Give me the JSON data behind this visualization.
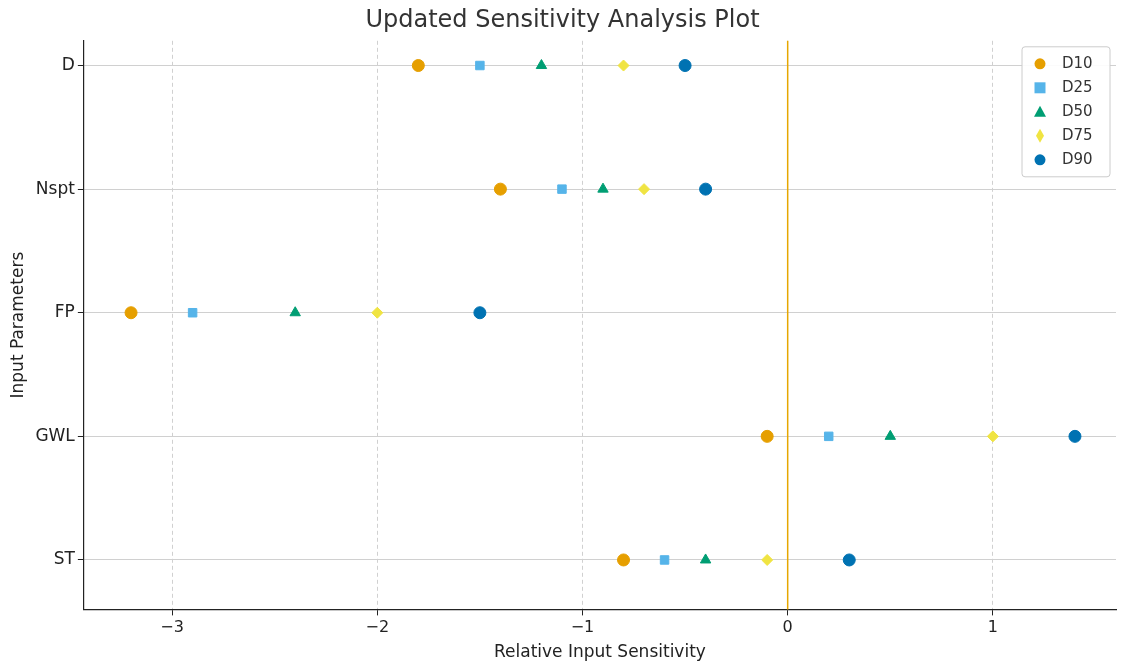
{
  "chart_data": {
    "type": "scatter",
    "orientation": "horizontal",
    "title": "Updated Sensitivity Analysis Plot",
    "xlabel": "Relative Input Sensitivity",
    "ylabel": "Input Parameters",
    "categories": [
      "D",
      "Nspt",
      "FP",
      "GWL",
      "ST"
    ],
    "series": [
      {
        "name": "D10",
        "color": "#e69f00",
        "marker": "circle",
        "values": [
          -1.8,
          -1.4,
          -3.2,
          -0.1,
          -0.8
        ]
      },
      {
        "name": "D25",
        "color": "#56b4e9",
        "marker": "square",
        "values": [
          -1.5,
          -1.1,
          -2.9,
          0.2,
          -0.6
        ]
      },
      {
        "name": "D50",
        "color": "#009e73",
        "marker": "triangle",
        "values": [
          -1.2,
          -0.9,
          -2.4,
          0.5,
          -0.4
        ]
      },
      {
        "name": "D75",
        "color": "#f0e442",
        "marker": "diamond",
        "values": [
          -0.8,
          -0.7,
          -2.0,
          1.0,
          -0.1
        ]
      },
      {
        "name": "D90",
        "color": "#0072b2",
        "marker": "circle",
        "values": [
          -0.5,
          -0.4,
          -1.5,
          1.4,
          0.3
        ]
      }
    ],
    "xlim": [
      -3.43,
      1.6
    ],
    "xticks": [
      -3,
      -2,
      -1,
      0,
      1
    ],
    "ref_lines": [
      {
        "axis": "x",
        "value": 0,
        "color": "#e6a700"
      }
    ],
    "grid": true,
    "legend": "top right"
  }
}
